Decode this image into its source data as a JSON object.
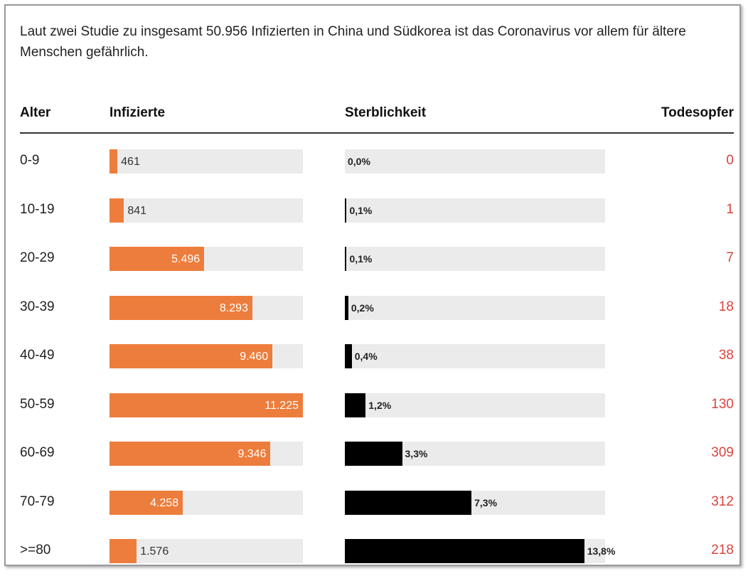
{
  "subtitle": "Laut zwei Studie zu insgesamt 50.956 Infizierten in China und Südkorea ist das Coronavirus vor allem für ältere Menschen gefährlich.",
  "headers": {
    "age": "Alter",
    "infected": "Infizierte",
    "mortality": "Sterblichkeit",
    "deaths": "Todesopfer"
  },
  "colors": {
    "infected_bar": "#ed7d3c",
    "mortality_bar": "#000000",
    "track": "#ebebeb",
    "deaths_text": "#d9443e"
  },
  "chart_data": {
    "type": "table",
    "columns": [
      "Alter",
      "Infizierte",
      "Sterblichkeit",
      "Todesopfer"
    ],
    "infected_max": 11225,
    "mortality_max": 15.0,
    "rows": [
      {
        "age": "0-9",
        "infected": 461,
        "infected_label": "461",
        "mortality": 0.0,
        "mortality_label": "0,0%",
        "deaths": "0"
      },
      {
        "age": "10-19",
        "infected": 841,
        "infected_label": "841",
        "mortality": 0.1,
        "mortality_label": "0,1%",
        "deaths": "1"
      },
      {
        "age": "20-29",
        "infected": 5496,
        "infected_label": "5.496",
        "mortality": 0.1,
        "mortality_label": "0,1%",
        "deaths": "7"
      },
      {
        "age": "30-39",
        "infected": 8293,
        "infected_label": "8.293",
        "mortality": 0.2,
        "mortality_label": "0,2%",
        "deaths": "18"
      },
      {
        "age": "40-49",
        "infected": 9460,
        "infected_label": "9.460",
        "mortality": 0.4,
        "mortality_label": "0,4%",
        "deaths": "38"
      },
      {
        "age": "50-59",
        "infected": 11225,
        "infected_label": "11.225",
        "mortality": 1.2,
        "mortality_label": "1,2%",
        "deaths": "130"
      },
      {
        "age": "60-69",
        "infected": 9346,
        "infected_label": "9.346",
        "mortality": 3.3,
        "mortality_label": "3,3%",
        "deaths": "309"
      },
      {
        "age": "70-79",
        "infected": 4258,
        "infected_label": "4.258",
        "mortality": 7.3,
        "mortality_label": "7,3%",
        "deaths": "312"
      },
      {
        "age": ">=80",
        "infected": 1576,
        "infected_label": "1.576",
        "mortality": 13.8,
        "mortality_label": "13,8%",
        "deaths": "218"
      }
    ]
  }
}
